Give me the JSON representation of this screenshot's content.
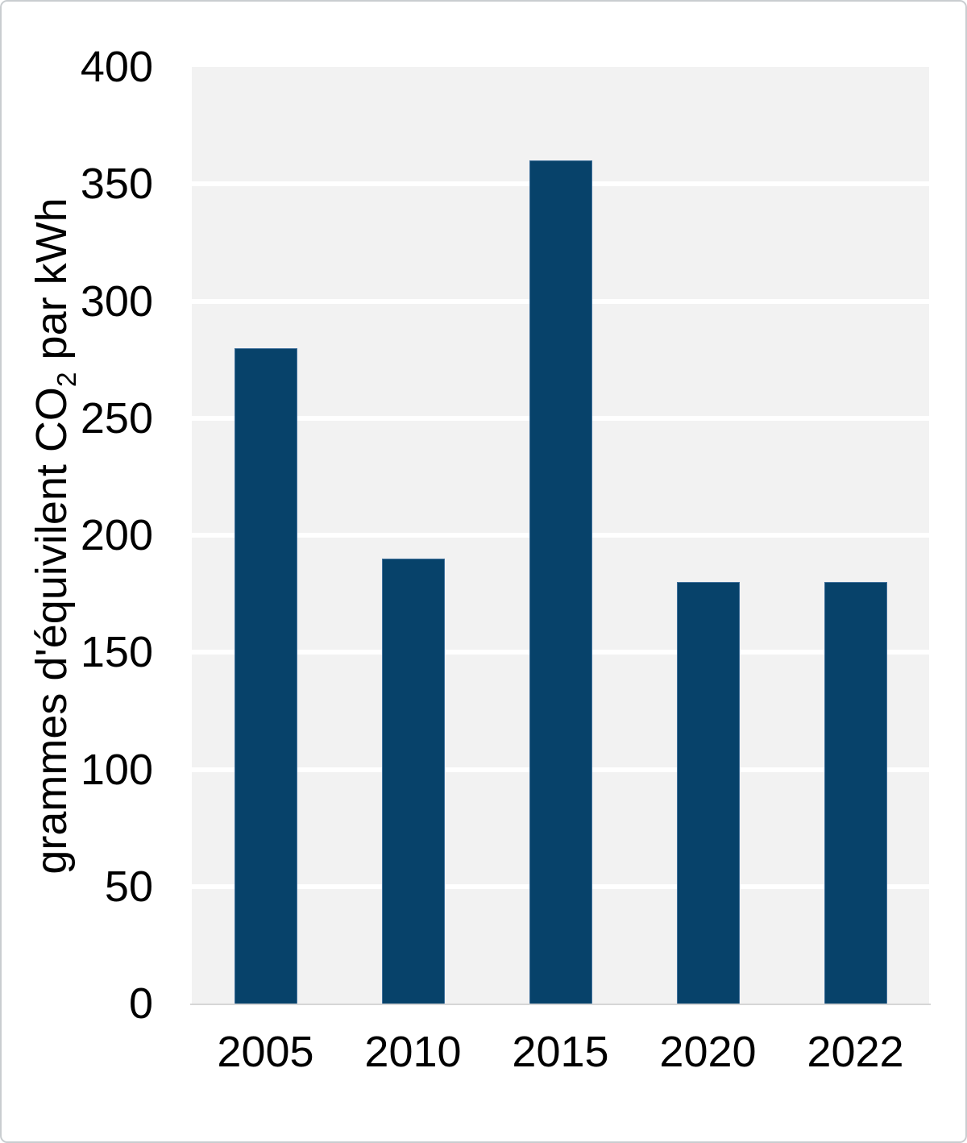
{
  "frame": {
    "background": "#ffffff",
    "border_color": "#c9cdd0"
  },
  "chart_data": {
    "type": "bar",
    "title": "",
    "xlabel": "",
    "ylabel": "grammes d'équivilent CO2 par kWh",
    "ylabel_parts": {
      "pre": "grammes d'équivilent CO",
      "sub": "2",
      "post": " par kWh"
    },
    "categories": [
      "2005",
      "2010",
      "2015",
      "2020",
      "2022"
    ],
    "values": [
      280,
      190,
      360,
      180,
      180
    ],
    "ylim": [
      0,
      400
    ],
    "y_ticks": [
      0,
      50,
      100,
      150,
      200,
      250,
      300,
      350,
      400
    ],
    "grid": "horizontal",
    "legend": "none",
    "colors": {
      "bar_fill": "#07426a",
      "bar_border": "#41719c",
      "plot_background": "#f2f2f2",
      "gridline": "#ffffff",
      "axis_line": "#d6d6d6",
      "tick_label": "#000000"
    }
  }
}
